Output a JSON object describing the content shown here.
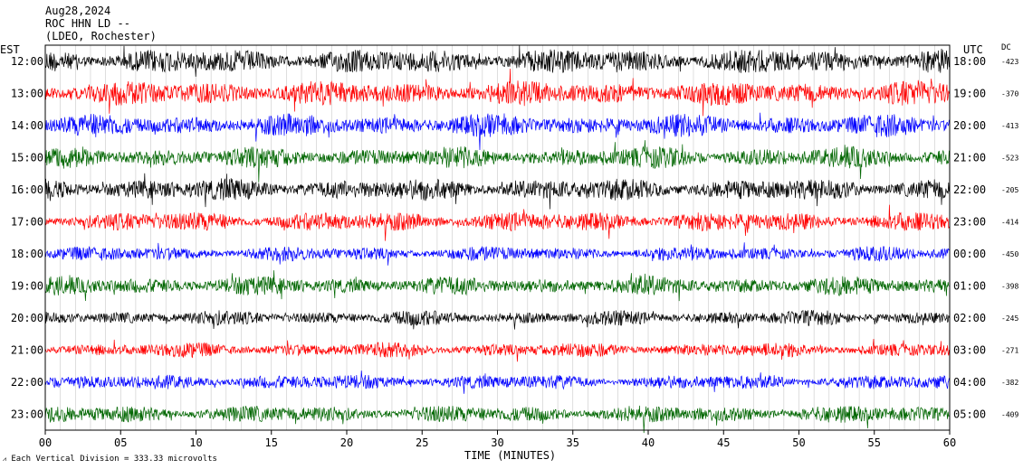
{
  "header": {
    "date": "Aug28,2024",
    "station": "ROC HHN LD --",
    "network": "(LDEO, Rochester)",
    "left_zone": "EST",
    "right_zone": "UTC",
    "dc_label": "DC"
  },
  "footer": {
    "scale_note": "Each Vertical Division =  333.33 microvolts"
  },
  "chart_data": {
    "type": "line",
    "title": "ROC HHN LD --",
    "xlabel": "TIME (MINUTES)",
    "ylabel": "",
    "xlim": [
      0,
      60
    ],
    "x_ticks": [
      "00",
      "05",
      "10",
      "15",
      "20",
      "25",
      "30",
      "35",
      "40",
      "45",
      "50",
      "55",
      "60"
    ],
    "grid": "vertical",
    "series_colors": [
      "#000000",
      "#ff0000",
      "#0000ff",
      "#006600"
    ],
    "traces": [
      {
        "est": "12:00",
        "utc": "18:00",
        "dc": "-423",
        "amplitude": 1.0
      },
      {
        "est": "13:00",
        "utc": "19:00",
        "dc": "-370",
        "amplitude": 1.0
      },
      {
        "est": "14:00",
        "utc": "20:00",
        "dc": "-413",
        "amplitude": 0.9
      },
      {
        "est": "15:00",
        "utc": "21:00",
        "dc": "-523",
        "amplitude": 0.85
      },
      {
        "est": "16:00",
        "utc": "22:00",
        "dc": "-205",
        "amplitude": 0.9
      },
      {
        "est": "17:00",
        "utc": "23:00",
        "dc": "-414",
        "amplitude": 0.8
      },
      {
        "est": "18:00",
        "utc": "00:00",
        "dc": "-450",
        "amplitude": 0.6
      },
      {
        "est": "19:00",
        "utc": "01:00",
        "dc": "-398",
        "amplitude": 0.75
      },
      {
        "est": "20:00",
        "utc": "02:00",
        "dc": "-245",
        "amplitude": 0.6
      },
      {
        "est": "21:00",
        "utc": "03:00",
        "dc": "-271",
        "amplitude": 0.6
      },
      {
        "est": "22:00",
        "utc": "04:00",
        "dc": "-382",
        "amplitude": 0.6
      },
      {
        "est": "23:00",
        "utc": "05:00",
        "dc": "-409",
        "amplitude": 0.7
      }
    ]
  }
}
